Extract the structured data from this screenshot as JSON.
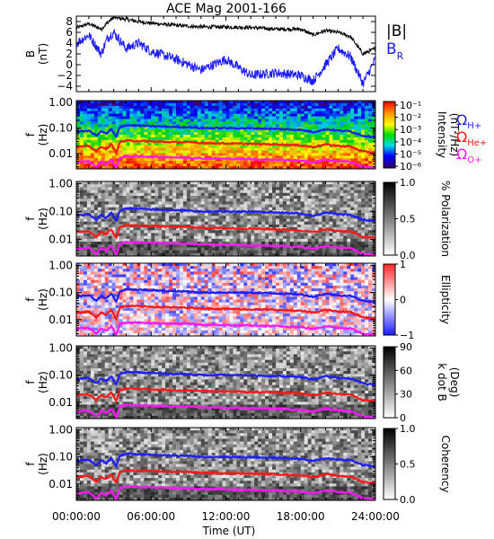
{
  "title": "ACE Mag 2001-166",
  "colors": {
    "black": "#000000",
    "blue": "#1d1dff",
    "red": "#ff1818",
    "magenta": "#ff18ff"
  },
  "chart_data": [
    {
      "type": "line",
      "title": "ACE Mag 2001-166",
      "ylabel_line1": "B",
      "ylabel_line2": "(nT)",
      "ylim": [
        -5,
        9
      ],
      "yticks": [
        "−4",
        "−2",
        "0",
        "2",
        "4",
        "6",
        "8"
      ],
      "ytick_values": [
        -4,
        -2,
        0,
        2,
        4,
        6,
        8
      ],
      "x": [
        0,
        1,
        2,
        2.5,
        3,
        4,
        5,
        6,
        8,
        10,
        12,
        14,
        16,
        18,
        19,
        20,
        21,
        22,
        23,
        24
      ],
      "series": [
        {
          "name": "|B|",
          "color": "#000000",
          "values": [
            6.8,
            7.6,
            6.6,
            7.8,
            8.8,
            8.4,
            8.0,
            7.7,
            7.3,
            7.0,
            7.0,
            6.9,
            6.6,
            6.6,
            5.5,
            6.3,
            6.0,
            5.2,
            2.0,
            3.0
          ]
        },
        {
          "name": "B_R",
          "color": "#1d1dff",
          "values": [
            4.0,
            5.5,
            2.0,
            5.0,
            6.0,
            3.0,
            4.0,
            2.5,
            1.0,
            -1.0,
            1.0,
            -2.0,
            -1.5,
            -2.0,
            -3.0,
            0.0,
            3.0,
            1.5,
            -3.5,
            1.0
          ]
        }
      ],
      "legend": [
        "|B|",
        "B_R"
      ],
      "legend_placement": "right"
    },
    {
      "type": "heatmap",
      "ylabel_line1": "f",
      "ylabel_line2": "(Hz)",
      "yticks": [
        "1.00",
        "0.10",
        "0.01"
      ],
      "colorbar_label": "Intensity",
      "colorbar_unit": "(nT²/Hz)",
      "colorbar_ticks": [
        "10⁻¹",
        "10⁻²",
        "10⁻³",
        "10⁻⁴",
        "10⁻⁵",
        "10⁻⁶"
      ],
      "colorscale": "rainbow",
      "lines": [
        "Ω_H+",
        "Ω_He+",
        "Ω_O+"
      ]
    },
    {
      "type": "heatmap",
      "ylabel_line1": "f",
      "ylabel_line2": "(Hz)",
      "yticks": [
        "1.00",
        "0.10",
        "0.01"
      ],
      "colorbar_label": "% Polarization",
      "colorbar_ticks": [
        "1.0",
        "0.5",
        "0.0"
      ],
      "colorscale": "gray"
    },
    {
      "type": "heatmap",
      "ylabel_line1": "f",
      "ylabel_line2": "(Hz)",
      "yticks": [
        "1.00",
        "0.10",
        "0.01"
      ],
      "colorbar_label": "Ellipticity",
      "colorbar_ticks": [
        "1",
        "0",
        "−1"
      ],
      "colorscale": "blue-white-red"
    },
    {
      "type": "heatmap",
      "ylabel_line1": "f",
      "ylabel_line2": "(Hz)",
      "yticks": [
        "1.00",
        "0.10",
        "0.01"
      ],
      "colorbar_label": "k dot B",
      "colorbar_unit": "(Deg)",
      "colorbar_ticks": [
        "90",
        "60",
        "30",
        "0"
      ],
      "colorscale": "gray"
    },
    {
      "type": "heatmap",
      "ylabel_line1": "f",
      "ylabel_line2": "(Hz)",
      "yticks": [
        "1.00",
        "0.10",
        "0.01"
      ],
      "colorbar_label": "Coherency",
      "colorbar_ticks": [
        "1.0",
        "0.5",
        "0.0"
      ],
      "colorscale": "gray"
    }
  ],
  "legend_right": {
    "b_mag": "|B|",
    "b_r_main": "B",
    "b_r_sub": "R",
    "omega": "Ω",
    "h_sub": "H+",
    "he_sub": "He+",
    "o_sub": "O+"
  },
  "xaxis": {
    "ticks": [
      "00:00:00",
      "06:00:00",
      "12:00:00",
      "18:00:00",
      "24:00:00"
    ],
    "tick_hours": [
      0,
      6,
      12,
      18,
      24
    ],
    "label": "Time (UT)"
  },
  "cyclotron_lines": {
    "x_hours": [
      0,
      1,
      1.6,
      2,
      2.4,
      2.8,
      3.2,
      3.5,
      4,
      6,
      8,
      9,
      10,
      12,
      14,
      16,
      18,
      19,
      20,
      21,
      22,
      23,
      24
    ],
    "H+": [
      0.07,
      0.08,
      0.05,
      0.075,
      0.06,
      0.09,
      0.045,
      0.11,
      0.13,
      0.12,
      0.11,
      0.11,
      0.1,
      0.1,
      0.098,
      0.093,
      0.085,
      0.07,
      0.09,
      0.08,
      0.075,
      0.05,
      0.045
    ],
    "He+": [
      0.018,
      0.02,
      0.012,
      0.019,
      0.015,
      0.023,
      0.011,
      0.028,
      0.032,
      0.03,
      0.028,
      0.028,
      0.026,
      0.025,
      0.024,
      0.023,
      0.021,
      0.018,
      0.023,
      0.02,
      0.019,
      0.012,
      0.011
    ],
    "O+": [
      0.0045,
      0.005,
      0.003,
      0.0048,
      0.0038,
      0.0058,
      0.0028,
      0.007,
      0.008,
      0.0075,
      0.007,
      0.007,
      0.0065,
      0.0063,
      0.006,
      0.0058,
      0.0053,
      0.0045,
      0.0058,
      0.005,
      0.0048,
      0.003,
      0.0028
    ]
  }
}
